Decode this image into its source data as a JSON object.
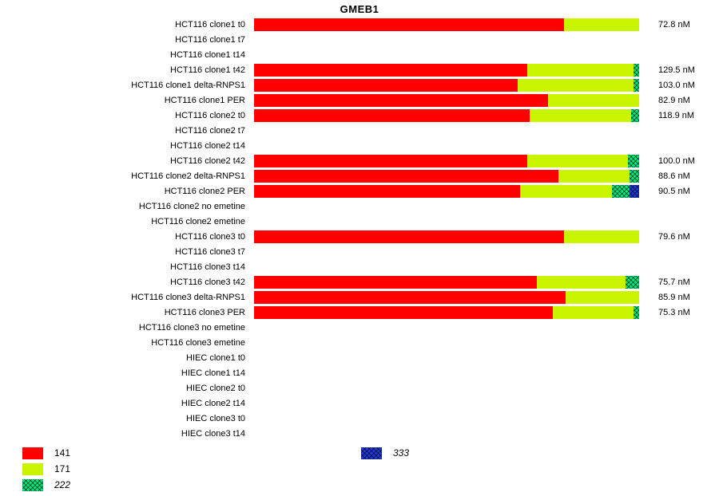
{
  "title": "GMEB1",
  "colors": {
    "141": "#ff0000",
    "171": "#c8f400",
    "222": "#00e87c",
    "333": "#2038d8"
  },
  "legend": {
    "items": [
      {
        "label": "141",
        "series": "141"
      },
      {
        "label": "171",
        "series": "171"
      },
      {
        "label": "222",
        "series": "222"
      },
      {
        "label": "333",
        "series": "333"
      }
    ]
  },
  "chart_data": {
    "type": "bar",
    "orientation": "horizontal",
    "stacked": true,
    "title": "GMEB1",
    "xlim": [
      0,
      100
    ],
    "grid": false,
    "legend_position": "bottom-left",
    "series_names": [
      "141",
      "171",
      "222",
      "333"
    ],
    "rows": [
      {
        "label": "HCT116 clone1 t0",
        "value_label": "72.8 nM",
        "segments": [
          80.5,
          19.5,
          0,
          0
        ]
      },
      {
        "label": "HCT116 clone1 t7",
        "value_label": "",
        "segments": [
          0,
          0,
          0,
          0
        ]
      },
      {
        "label": "HCT116 clone1 t14",
        "value_label": "",
        "segments": [
          0,
          0,
          0,
          0
        ]
      },
      {
        "label": "HCT116 clone1 t42",
        "value_label": "129.5 nM",
        "segments": [
          71.0,
          27.5,
          1.5,
          0
        ]
      },
      {
        "label": "HCT116 clone1 delta-RNPS1",
        "value_label": "103.0 nM",
        "segments": [
          68.5,
          30.0,
          1.5,
          0
        ]
      },
      {
        "label": "HCT116 clone1 PER",
        "value_label": "82.9 nM",
        "segments": [
          76.3,
          23.7,
          0,
          0
        ]
      },
      {
        "label": "HCT116 clone2 t0",
        "value_label": "118.9 nM",
        "segments": [
          71.5,
          26.5,
          2.0,
          0
        ]
      },
      {
        "label": "HCT116 clone2 t7",
        "value_label": "",
        "segments": [
          0,
          0,
          0,
          0
        ]
      },
      {
        "label": "HCT116 clone2 t14",
        "value_label": "",
        "segments": [
          0,
          0,
          0,
          0
        ]
      },
      {
        "label": "HCT116 clone2 t42",
        "value_label": "100.0 nM",
        "segments": [
          71.0,
          26.0,
          3.0,
          0
        ]
      },
      {
        "label": "HCT116 clone2 delta-RNPS1",
        "value_label": "88.6 nM",
        "segments": [
          79.0,
          18.5,
          2.5,
          0
        ]
      },
      {
        "label": "HCT116 clone2 PER",
        "value_label": "90.5 nM",
        "segments": [
          69.0,
          24.0,
          4.5,
          2.5
        ]
      },
      {
        "label": "HCT116 clone2 no emetine",
        "value_label": "",
        "segments": [
          0,
          0,
          0,
          0
        ]
      },
      {
        "label": "HCT116 clone2 emetine",
        "value_label": "",
        "segments": [
          0,
          0,
          0,
          0
        ]
      },
      {
        "label": "HCT116 clone3 t0",
        "value_label": "79.6 nM",
        "segments": [
          80.5,
          19.5,
          0,
          0
        ]
      },
      {
        "label": "HCT116 clone3 t7",
        "value_label": "",
        "segments": [
          0,
          0,
          0,
          0
        ]
      },
      {
        "label": "HCT116 clone3 t14",
        "value_label": "",
        "segments": [
          0,
          0,
          0,
          0
        ]
      },
      {
        "label": "HCT116 clone3 t42",
        "value_label": "75.7 nM",
        "segments": [
          73.5,
          23.0,
          3.5,
          0
        ]
      },
      {
        "label": "HCT116 clone3 delta-RNPS1",
        "value_label": "85.9 nM",
        "segments": [
          81.0,
          19.0,
          0,
          0
        ]
      },
      {
        "label": "HCT116 clone3 PER",
        "value_label": "75.3 nM",
        "segments": [
          77.5,
          21.0,
          1.5,
          0
        ]
      },
      {
        "label": "HCT116 clone3 no emetine",
        "value_label": "",
        "segments": [
          0,
          0,
          0,
          0
        ]
      },
      {
        "label": "HCT116 clone3 emetine",
        "value_label": "",
        "segments": [
          0,
          0,
          0,
          0
        ]
      },
      {
        "label": "HIEC clone1 t0",
        "value_label": "",
        "segments": [
          0,
          0,
          0,
          0
        ]
      },
      {
        "label": "HIEC clone1 t14",
        "value_label": "",
        "segments": [
          0,
          0,
          0,
          0
        ]
      },
      {
        "label": "HIEC clone2 t0",
        "value_label": "",
        "segments": [
          0,
          0,
          0,
          0
        ]
      },
      {
        "label": "HIEC clone2 t14",
        "value_label": "",
        "segments": [
          0,
          0,
          0,
          0
        ]
      },
      {
        "label": "HIEC clone3 t0",
        "value_label": "",
        "segments": [
          0,
          0,
          0,
          0
        ]
      },
      {
        "label": "HIEC clone3 t14",
        "value_label": "",
        "segments": [
          0,
          0,
          0,
          0
        ]
      }
    ]
  }
}
